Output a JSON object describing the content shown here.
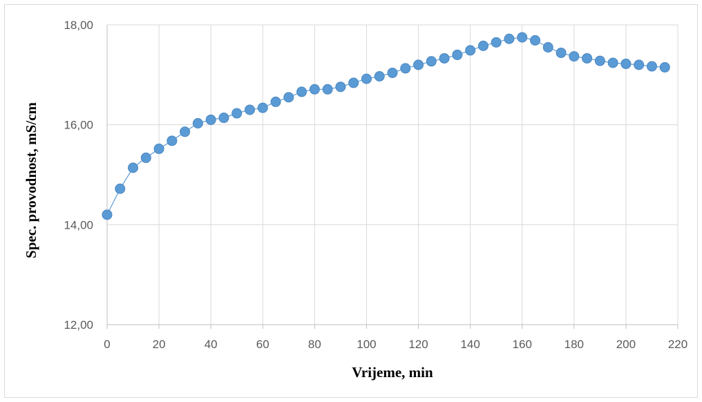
{
  "chart_data": {
    "type": "scatter",
    "title": "",
    "xlabel": "Vrijeme, min",
    "ylabel": "Spec. provodnost, mS/cm",
    "xlim": [
      0,
      220
    ],
    "ylim": [
      12,
      18
    ],
    "x_ticks": [
      0,
      20,
      40,
      60,
      80,
      100,
      120,
      140,
      160,
      180,
      200,
      220
    ],
    "x_tick_labels": [
      "0",
      "20",
      "40",
      "60",
      "80",
      "100",
      "120",
      "140",
      "160",
      "180",
      "200",
      "220"
    ],
    "y_ticks": [
      12,
      14,
      16,
      18
    ],
    "y_tick_labels": [
      "12,00",
      "14,00",
      "16,00",
      "18,00"
    ],
    "grid": true,
    "connected": true,
    "marker_color": "#5b9bd5",
    "series": [
      {
        "x": [
          0,
          5,
          10,
          15,
          20,
          25,
          30,
          35,
          40,
          45,
          50,
          55,
          60,
          65,
          70,
          75,
          80,
          85,
          90,
          95,
          100,
          105,
          110,
          115,
          120,
          125,
          130,
          135,
          140,
          145,
          150,
          155,
          160,
          165,
          170,
          175,
          180,
          185,
          190,
          195,
          200,
          205,
          210,
          215
        ],
        "y": [
          14.2,
          14.72,
          15.14,
          15.34,
          15.52,
          15.68,
          15.86,
          16.03,
          16.1,
          16.14,
          16.23,
          16.3,
          16.34,
          16.46,
          16.55,
          16.66,
          16.71,
          16.71,
          16.76,
          16.84,
          16.92,
          16.97,
          17.04,
          17.13,
          17.2,
          17.27,
          17.33,
          17.4,
          17.49,
          17.58,
          17.65,
          17.72,
          17.75,
          17.69,
          17.55,
          17.44,
          17.37,
          17.33,
          17.28,
          17.24,
          17.22,
          17.2,
          17.17,
          17.15
        ]
      }
    ]
  }
}
